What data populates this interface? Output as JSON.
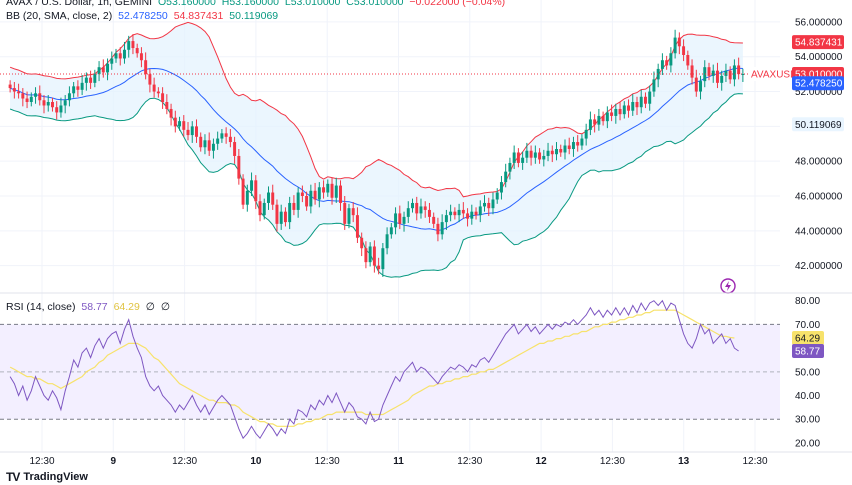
{
  "header": {
    "symbol_line": "AVAX / U.S. Dollar, 1h, GEMINI",
    "ohlc": [
      "O53.160000",
      "H53.160000",
      "L53.010000",
      "C53.010000",
      "−0.022000 (−0.04%)"
    ],
    "bb_label": "BB (20, SMA, close, 2)",
    "bb_values": [
      "52.478250",
      "54.837431",
      "50.119069"
    ],
    "rsi_label": "RSI (14, close)",
    "rsi_values": [
      "58.77",
      "64.29",
      "∅",
      "∅"
    ]
  },
  "branding": {
    "logo_text": "TradingView"
  },
  "colors": {
    "up": "#089981",
    "down": "#f23645",
    "basis": "#2962ff",
    "upper": "#f23645",
    "lower": "#089981",
    "band_fill": "#e3f2fd",
    "rsi_line": "#7e57c2",
    "rsi_ma": "#f7e26b",
    "rsi_fill": "#f3efff",
    "price_tag": "#f23645"
  },
  "chart_data": [
    {
      "type": "candlestick",
      "title": "AVAX / U.S. Dollar, 1h, GEMINI",
      "x_ticks": [
        "12:30",
        "9",
        "12:30",
        "10",
        "12:30",
        "11",
        "12:30",
        "12",
        "12:30",
        "13",
        "12:30"
      ],
      "y_ticks": [
        "42.000000",
        "44.000000",
        "46.000000",
        "48.000000",
        "50.000000",
        "52.000000",
        "54.000000",
        "56.000000"
      ],
      "ylim": [
        40.6,
        56.8
      ],
      "last_price": {
        "label": "AVAXUSD",
        "value": "53.010000"
      },
      "bb_tags": {
        "upper": "54.837431",
        "basis": "52.478250",
        "lower": "50.119069"
      },
      "close": [
        52.2,
        52.0,
        51.9,
        51.6,
        51.4,
        51.7,
        51.9,
        51.5,
        51.2,
        51.4,
        51.1,
        50.8,
        51.2,
        51.5,
        51.9,
        52.3,
        52.1,
        52.5,
        52.8,
        52.5,
        53.0,
        53.4,
        53.1,
        53.6,
        53.9,
        54.2,
        53.9,
        54.4,
        54.9,
        54.5,
        54.2,
        53.8,
        53.0,
        52.4,
        52.0,
        51.9,
        51.4,
        51.0,
        50.5,
        50.0,
        50.3,
        49.8,
        49.5,
        50.0,
        49.4,
        48.8,
        49.2,
        48.6,
        49.0,
        49.3,
        49.6,
        49.4,
        49.1,
        48.3,
        47.0,
        45.5,
        46.3,
        46.9,
        45.7,
        44.9,
        45.6,
        46.2,
        45.5,
        44.4,
        45.1,
        44.5,
        45.6,
        45.2,
        46.2,
        46.0,
        45.4,
        46.3,
        45.8,
        46.5,
        46.2,
        46.7,
        45.9,
        46.6,
        45.6,
        44.4,
        45.3,
        44.9,
        43.6,
        43.0,
        42.2,
        43.1,
        42.0,
        41.8,
        43.0,
        43.8,
        44.2,
        45.0,
        44.4,
        44.8,
        45.3,
        45.6,
        45.0,
        45.4,
        45.2,
        44.8,
        44.4,
        43.8,
        44.5,
        44.9,
        45.1,
        44.9,
        45.2,
        45.0,
        44.7,
        45.1,
        44.9,
        45.4,
        45.6,
        45.3,
        45.8,
        46.2,
        46.8,
        47.4,
        47.9,
        48.5,
        47.9,
        48.2,
        48.6,
        48.2,
        48.5,
        48.1,
        48.3,
        48.6,
        48.4,
        48.7,
        48.5,
        48.9,
        48.7,
        49.1,
        48.9,
        49.3,
        49.8,
        50.4,
        50.1,
        50.6,
        50.3,
        50.8,
        50.6,
        51.0,
        50.7,
        51.2,
        50.9,
        51.4,
        51.1,
        51.7,
        51.3,
        52.0,
        52.7,
        53.3,
        53.8,
        53.5,
        54.2,
        55.1,
        54.6,
        54.1,
        53.5,
        52.8,
        52.0,
        52.6,
        53.4,
        52.9,
        53.2,
        52.5,
        52.9,
        53.2,
        52.7,
        53.5,
        53.0,
        53.01
      ]
    },
    {
      "type": "line",
      "title": "RSI (14, close)",
      "y_ticks": [
        "20.00",
        "30.00",
        "40.00",
        "50.00",
        "60.00",
        "70.00",
        "80.00"
      ],
      "ylim": [
        17,
        82
      ],
      "bands": [
        30,
        50,
        70
      ],
      "series": [
        {
          "name": "58.77",
          "values": [
            48,
            45,
            40,
            44,
            38,
            42,
            48,
            44,
            40,
            38,
            42,
            39,
            34,
            42,
            48,
            55,
            52,
            58,
            60,
            56,
            61,
            64,
            60,
            64,
            66,
            67,
            62,
            68,
            72,
            65,
            60,
            56,
            48,
            44,
            42,
            44,
            40,
            38,
            36,
            33,
            36,
            34,
            37,
            40,
            36,
            33,
            36,
            32,
            35,
            38,
            40,
            38,
            36,
            31,
            26,
            22,
            24,
            27,
            24,
            22,
            25,
            28,
            26,
            23,
            26,
            24,
            30,
            28,
            34,
            33,
            31,
            36,
            34,
            38,
            36,
            40,
            37,
            41,
            37,
            33,
            37,
            35,
            31,
            30,
            28,
            33,
            29,
            30,
            36,
            40,
            44,
            48,
            46,
            50,
            52,
            54,
            50,
            52,
            51,
            49,
            47,
            45,
            48,
            50,
            52,
            51,
            53,
            52,
            50,
            53,
            52,
            55,
            56,
            54,
            57,
            60,
            63,
            66,
            68,
            70,
            66,
            68,
            70,
            67,
            69,
            66,
            68,
            70,
            68,
            70,
            69,
            71,
            70,
            72,
            70,
            72,
            74,
            77,
            74,
            76,
            73,
            76,
            74,
            77,
            74,
            77,
            74,
            78,
            75,
            79,
            76,
            79,
            80,
            78,
            80,
            76,
            79,
            78,
            72,
            66,
            62,
            60,
            64,
            70,
            66,
            68,
            62,
            64,
            66,
            62,
            64,
            60,
            58.77
          ]
        },
        {
          "name": "64.29",
          "values": [
            52,
            51,
            50,
            49,
            48,
            48,
            47,
            47,
            46,
            45,
            45,
            44,
            43,
            44,
            45,
            46,
            47,
            48,
            50,
            51,
            52,
            54,
            55,
            57,
            58,
            59,
            60,
            61,
            62,
            62,
            62,
            61,
            60,
            58,
            56,
            55,
            53,
            51,
            49,
            47,
            45,
            44,
            43,
            42,
            41,
            40,
            39,
            38,
            38,
            37,
            37,
            37,
            36,
            36,
            35,
            33,
            32,
            31,
            30,
            29,
            29,
            28,
            28,
            27,
            27,
            27,
            27,
            27,
            28,
            28,
            29,
            29,
            30,
            30,
            31,
            32,
            32,
            33,
            33,
            33,
            33,
            33,
            33,
            33,
            32,
            32,
            32,
            32,
            32,
            33,
            34,
            35,
            36,
            37,
            38,
            40,
            41,
            42,
            43,
            44,
            44,
            45,
            45,
            46,
            46,
            47,
            47,
            48,
            48,
            49,
            49,
            50,
            50,
            51,
            51,
            52,
            53,
            54,
            55,
            56,
            57,
            58,
            59,
            60,
            61,
            62,
            62,
            63,
            63,
            64,
            64,
            65,
            65,
            66,
            66,
            67,
            67,
            68,
            69,
            69,
            70,
            70,
            71,
            71,
            72,
            72,
            73,
            73,
            74,
            74,
            75,
            75,
            76,
            76,
            76,
            76,
            76,
            76,
            75,
            74,
            73,
            72,
            71,
            70,
            69,
            68,
            67,
            66,
            65,
            65,
            64.5,
            64.29
          ]
        }
      ],
      "value_tags": {
        "ma": "64.29",
        "rsi": "58.77"
      }
    }
  ]
}
